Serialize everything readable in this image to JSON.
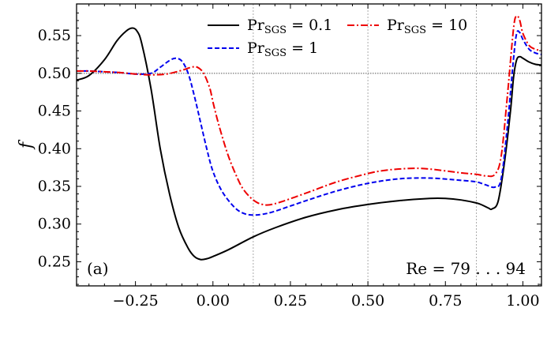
{
  "chart_data": {
    "type": "line",
    "title": "",
    "xlabel": "",
    "ylabel": "f",
    "xlim": [
      -0.44,
      1.06
    ],
    "ylim": [
      0.218,
      0.592
    ],
    "xticks": [
      -0.25,
      0.0,
      0.25,
      0.5,
      0.75,
      1.0
    ],
    "xtick_labels": [
      "−0.25",
      "0.00",
      "0.25",
      "0.50",
      "0.75",
      "1.00"
    ],
    "yticks": [
      0.25,
      0.3,
      0.35,
      0.4,
      0.45,
      0.5,
      0.55
    ],
    "ytick_labels": [
      "0.25",
      "0.30",
      "0.35",
      "0.40",
      "0.45",
      "0.50",
      "0.55"
    ],
    "reference_lines": {
      "horizontal": [
        0.5
      ],
      "vertical": [
        0.13,
        0.5,
        0.85
      ]
    },
    "series": [
      {
        "name": "Pr_SGS = 0.1",
        "label_main": "Pr",
        "label_sub": "SGS",
        "label_rest": " = 0.1",
        "color": "#000000",
        "dash": "solid",
        "x": [
          -0.44,
          -0.4,
          -0.35,
          -0.31,
          -0.28,
          -0.26,
          -0.245,
          -0.23,
          -0.2,
          -0.17,
          -0.14,
          -0.11,
          -0.08,
          -0.06,
          -0.04,
          -0.02,
          0.0,
          0.05,
          0.13,
          0.2,
          0.3,
          0.4,
          0.5,
          0.6,
          0.7,
          0.75,
          0.8,
          0.85,
          0.87,
          0.89,
          0.9,
          0.92,
          0.94,
          0.96,
          0.97,
          0.98,
          0.99,
          1.0,
          1.02,
          1.04,
          1.06
        ],
        "y": [
          0.491,
          0.497,
          0.518,
          0.543,
          0.556,
          0.56,
          0.556,
          0.54,
          0.48,
          0.4,
          0.34,
          0.295,
          0.268,
          0.257,
          0.253,
          0.254,
          0.257,
          0.266,
          0.283,
          0.295,
          0.309,
          0.319,
          0.326,
          0.331,
          0.334,
          0.334,
          0.332,
          0.328,
          0.325,
          0.321,
          0.32,
          0.33,
          0.38,
          0.45,
          0.495,
          0.518,
          0.522,
          0.52,
          0.515,
          0.512,
          0.511
        ]
      },
      {
        "name": "Pr_SGS = 1",
        "label_main": "Pr",
        "label_sub": "SGS",
        "label_rest": " = 1",
        "color": "#0000ee",
        "dash": "6,3",
        "x": [
          -0.44,
          -0.4,
          -0.35,
          -0.3,
          -0.25,
          -0.2,
          -0.17,
          -0.14,
          -0.12,
          -0.1,
          -0.08,
          -0.06,
          -0.04,
          -0.02,
          0.0,
          0.03,
          0.07,
          0.1,
          0.13,
          0.16,
          0.2,
          0.3,
          0.4,
          0.5,
          0.6,
          0.7,
          0.8,
          0.85,
          0.88,
          0.91,
          0.93,
          0.95,
          0.97,
          0.98,
          0.99,
          1.0,
          1.02,
          1.04,
          1.06
        ],
        "y": [
          0.503,
          0.503,
          0.502,
          0.501,
          0.499,
          0.5,
          0.508,
          0.517,
          0.52,
          0.516,
          0.5,
          0.47,
          0.435,
          0.4,
          0.37,
          0.343,
          0.322,
          0.314,
          0.312,
          0.313,
          0.317,
          0.331,
          0.344,
          0.354,
          0.36,
          0.361,
          0.358,
          0.356,
          0.352,
          0.349,
          0.36,
          0.43,
          0.52,
          0.553,
          0.554,
          0.545,
          0.532,
          0.527,
          0.525
        ]
      },
      {
        "name": "Pr_SGS = 10",
        "label_main": "Pr",
        "label_sub": "SGS",
        "label_rest": " = 10",
        "color": "#ee0000",
        "dash": "9,3,2,3",
        "x": [
          -0.44,
          -0.4,
          -0.35,
          -0.3,
          -0.25,
          -0.2,
          -0.15,
          -0.1,
          -0.07,
          -0.05,
          -0.03,
          -0.01,
          0.0,
          0.02,
          0.05,
          0.08,
          0.1,
          0.13,
          0.16,
          0.2,
          0.3,
          0.4,
          0.5,
          0.55,
          0.6,
          0.65,
          0.7,
          0.8,
          0.85,
          0.88,
          0.91,
          0.93,
          0.95,
          0.97,
          0.98,
          0.99,
          1.0,
          1.02,
          1.04,
          1.06
        ],
        "y": [
          0.503,
          0.503,
          0.502,
          0.501,
          0.499,
          0.498,
          0.499,
          0.504,
          0.508,
          0.508,
          0.5,
          0.48,
          0.462,
          0.43,
          0.39,
          0.36,
          0.345,
          0.332,
          0.326,
          0.327,
          0.341,
          0.356,
          0.367,
          0.371,
          0.373,
          0.374,
          0.373,
          0.368,
          0.366,
          0.364,
          0.366,
          0.39,
          0.47,
          0.56,
          0.576,
          0.57,
          0.553,
          0.537,
          0.532,
          0.53
        ]
      }
    ],
    "panel_label": "(a)",
    "annotation": "Re = 79 . . . 94",
    "legend_location": "top-center"
  }
}
